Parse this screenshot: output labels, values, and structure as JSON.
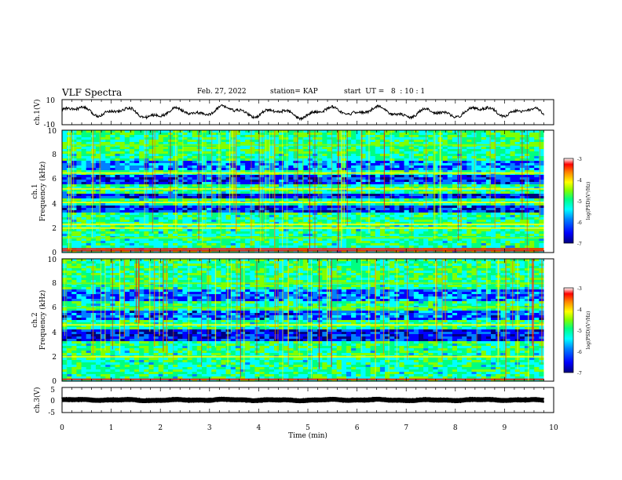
{
  "header": {
    "title": "VLF Spectra",
    "date": "Feb. 27, 2022",
    "station": "station= KAP",
    "start_ut": "start  UT =   8  : 10 : 1"
  },
  "panels": {
    "ch1_waveform": {
      "ylabel": "ch.1(V)",
      "y_ticks": [
        "10",
        "-10"
      ]
    },
    "ch1_spectrogram": {
      "ylabel_line1": "ch.1",
      "ylabel_line2": "Frequency  (kHz)",
      "y_ticks": [
        "0",
        "2",
        "4",
        "6",
        "8",
        "10"
      ]
    },
    "ch2_spectrogram": {
      "ylabel_line1": "ch.2",
      "ylabel_line2": "Frequency  (kHz)",
      "y_ticks": [
        "0",
        "2",
        "4",
        "6",
        "8",
        "10"
      ]
    },
    "ch3_waveform": {
      "ylabel": "ch.3(V)",
      "y_ticks": [
        "5",
        "0",
        "-5"
      ]
    }
  },
  "xaxis": {
    "label": "Time  (min)",
    "ticks": [
      "0",
      "1",
      "2",
      "3",
      "4",
      "5",
      "6",
      "7",
      "8",
      "9",
      "10"
    ]
  },
  "colorbar": {
    "label": "log(PSD)(V²/Hz)",
    "ticks": [
      "-3",
      "-4",
      "-5",
      "-6",
      "-7"
    ]
  },
  "colors": {
    "waveform": "#000000",
    "colormap": [
      "#00007f",
      "#0000ff",
      "#0080ff",
      "#00ffff",
      "#00ff80",
      "#80ff00",
      "#ffff00",
      "#ff8000",
      "#ff0000",
      "#ffffff"
    ]
  },
  "chart_data": [
    {
      "type": "line",
      "title": "VLF Spectra",
      "ylabel": "ch.1(V)",
      "xlabel": "Time  (min)",
      "xlim": [
        0,
        10
      ],
      "ylim": [
        -10,
        10
      ],
      "description_values": {
        "x_end": 9.8,
        "mean_level": 0,
        "amplitude": 5
      }
    },
    {
      "type": "heatmap",
      "ylabel": "ch.1 Frequency  (kHz)",
      "xlabel": "Time  (min)",
      "xlim": [
        0,
        10
      ],
      "ylim": [
        0,
        10
      ],
      "colorbar": {
        "label": "log(PSD)(V²/Hz)",
        "range": [
          -7,
          -3
        ]
      },
      "bands_kHz": [
        {
          "f": 0.15,
          "level": -3.2
        },
        {
          "f": 0.3,
          "level": -3.3
        },
        {
          "f": 1.2,
          "level": -4.5
        },
        {
          "f": 2.0,
          "level": -4.0
        },
        {
          "f": 2.3,
          "level": -4.0
        },
        {
          "f": 4.1,
          "level": -4.3
        },
        {
          "f": 5.2,
          "level": -4.2
        },
        {
          "f": 6.5,
          "level": -4.2
        },
        {
          "f": 8.8,
          "level": -4.5
        }
      ],
      "quiet_bands_kHz": [
        {
          "from": 3.3,
          "to": 3.9,
          "level": -6.2
        },
        {
          "from": 4.4,
          "to": 4.9,
          "level": -6.3
        },
        {
          "from": 5.5,
          "to": 6.3,
          "level": -6.2
        },
        {
          "from": 6.7,
          "to": 7.5,
          "level": -5.8
        }
      ]
    },
    {
      "type": "heatmap",
      "ylabel": "ch.2 Frequency  (kHz)",
      "xlabel": "Time  (min)",
      "xlim": [
        0,
        10
      ],
      "ylim": [
        0,
        10
      ],
      "colorbar": {
        "label": "log(PSD)(V²/Hz)",
        "range": [
          -7,
          -3
        ]
      },
      "bands_kHz": [
        {
          "f": 0.15,
          "level": -3.2
        },
        {
          "f": 2.0,
          "level": -4.0
        },
        {
          "f": 4.6,
          "level": -4.3
        },
        {
          "f": 6.0,
          "level": -4.5
        },
        {
          "f": 8.0,
          "level": -4.6
        }
      ],
      "quiet_bands_kHz": [
        {
          "from": 3.3,
          "to": 4.2,
          "level": -6.3
        },
        {
          "from": 5.0,
          "to": 5.8,
          "level": -6.0
        },
        {
          "from": 6.5,
          "to": 7.5,
          "level": -5.9
        }
      ]
    },
    {
      "type": "line",
      "ylabel": "ch.3(V)",
      "xlabel": "Time  (min)",
      "xlim": [
        0,
        10
      ],
      "ylim": [
        -5,
        5
      ],
      "description_values": {
        "x_end": 9.8,
        "mean_level": 0,
        "amplitude": 0.3
      }
    }
  ]
}
